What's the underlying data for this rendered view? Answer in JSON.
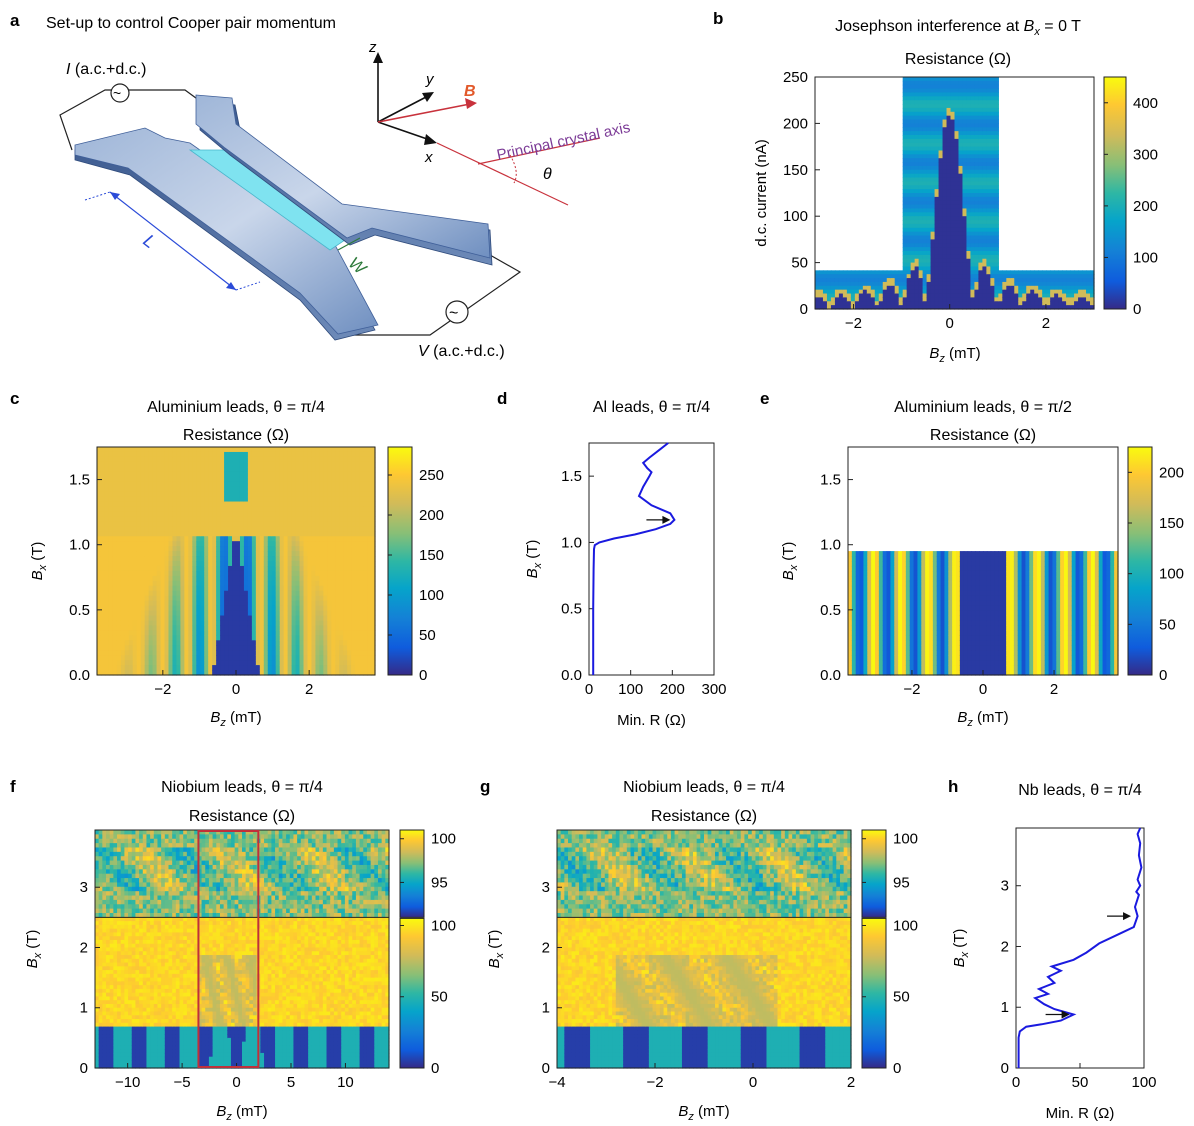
{
  "panel_labels": [
    "a",
    "b",
    "c",
    "d",
    "e",
    "f",
    "g",
    "h"
  ],
  "setup": {
    "title": "Set-up to control Cooper pair momentum",
    "current_source": "I (a.c.+d.c.)",
    "voltage_meter": "V (a.c.+d.c.)",
    "axis_x": "x",
    "axis_y": "y",
    "axis_z": "z",
    "field": "B",
    "crystal_axis": "Principal crystal axis",
    "angle": "θ",
    "length": "L",
    "width": "W"
  },
  "colors": {
    "parula": [
      "#352a87",
      "#0f5cdd",
      "#1481d6",
      "#06a4ca",
      "#2eb7a4",
      "#87bf77",
      "#d1bb59",
      "#fec832",
      "#f9fb0e"
    ],
    "trace": "#1a1adf",
    "field_arrow": "#c8323c",
    "axis_label": "#7b3a96",
    "highlight_box": "#c0303a"
  },
  "chart_data": [
    {
      "id": "b",
      "type": "heatmap",
      "title": "Josephson interference at B_x = 0 T",
      "title_parts": {
        "pre": "Josephson interference at ",
        "sym": "B",
        "sub": "x",
        "post": " = 0 T"
      },
      "subtitle": "Resistance (Ω)",
      "xlabel": {
        "sym": "B",
        "sub": "z",
        "unit": " (mT)"
      },
      "ylabel": "d.c. current (nA)",
      "xlim": [
        -2.8,
        3.0
      ],
      "ylim": [
        0,
        250
      ],
      "xticks": [
        -2,
        0,
        2
      ],
      "yticks": [
        0,
        50,
        100,
        150,
        200,
        250
      ],
      "colorbar": {
        "ticks": [
          0,
          100,
          200,
          300,
          400
        ],
        "range": [
          0,
          450
        ]
      },
      "central_lobe_peak_nA": 210
    },
    {
      "id": "c",
      "type": "heatmap",
      "title": "Aluminium leads, θ = π/4",
      "subtitle": "Resistance (Ω)",
      "xlabel": {
        "sym": "B",
        "sub": "z",
        "unit": " (mT)"
      },
      "ylabel": {
        "sym": "B",
        "sub": "x",
        "unit": " (T)"
      },
      "xlim": [
        -3.8,
        3.8
      ],
      "ylim": [
        0,
        1.75
      ],
      "xticks": [
        -2,
        0,
        2
      ],
      "yticks": [
        0.0,
        0.5,
        1.0,
        1.5
      ],
      "ytick_labels": [
        "0.0",
        "0.5",
        "1.0",
        "1.5"
      ],
      "colorbar": {
        "ticks": [
          0,
          50,
          100,
          150,
          200,
          250
        ],
        "range": [
          0,
          285
        ]
      }
    },
    {
      "id": "d",
      "type": "line",
      "title": "Al leads, θ = π/4",
      "xlabel": "Min. R (Ω)",
      "ylabel": {
        "sym": "B",
        "sub": "x",
        "unit": " (T)"
      },
      "xlim": [
        0,
        300
      ],
      "ylim": [
        0,
        1.75
      ],
      "xticks": [
        0,
        100,
        200,
        300
      ],
      "yticks": [
        0.0,
        0.5,
        1.0,
        1.5
      ],
      "ytick_labels": [
        "0.0",
        "0.5",
        "1.0",
        "1.5"
      ],
      "series": [
        {
          "x": [
            10,
            10,
            11,
            12,
            14,
            25,
            60,
            110,
            160,
            195,
            205,
            195,
            150,
            120,
            130,
            145,
            150,
            140,
            130,
            145,
            170,
            190
          ],
          "y": [
            0,
            0.5,
            0.8,
            0.95,
            0.98,
            1.0,
            1.03,
            1.06,
            1.1,
            1.14,
            1.17,
            1.22,
            1.28,
            1.35,
            1.42,
            1.5,
            1.53,
            1.56,
            1.6,
            1.64,
            1.7,
            1.75
          ]
        }
      ],
      "arrow_at": {
        "x": 205,
        "y": 1.17
      }
    },
    {
      "id": "e",
      "type": "heatmap",
      "title": "Aluminium leads, θ = π/2",
      "subtitle": "Resistance (Ω)",
      "xlabel": {
        "sym": "B",
        "sub": "z",
        "unit": " (mT)"
      },
      "ylabel": {
        "sym": "B",
        "sub": "x",
        "unit": " (T)"
      },
      "xlim": [
        -3.8,
        3.8
      ],
      "ylim": [
        0,
        1.75
      ],
      "xticks": [
        -2,
        0,
        2
      ],
      "yticks": [
        0.0,
        0.5,
        1.0,
        1.5
      ],
      "ytick_labels": [
        "0.0",
        "0.5",
        "1.0",
        "1.5"
      ],
      "colorbar": {
        "ticks": [
          0,
          50,
          100,
          150,
          200
        ],
        "range": [
          0,
          225
        ]
      },
      "data_top_T": 0.95
    },
    {
      "id": "f",
      "type": "heatmap",
      "title": "Niobium leads, θ = π/4",
      "subtitle": "Resistance (Ω)",
      "xlabel": {
        "sym": "B",
        "sub": "z",
        "unit": " (mT)"
      },
      "ylabel": {
        "sym": "B",
        "sub": "x",
        "unit": " (T)"
      },
      "xlim": [
        -13,
        14
      ],
      "ylim": [
        0,
        3.95
      ],
      "split_T": 2.5,
      "xticks": [
        -10,
        -5,
        0,
        5,
        10
      ],
      "yticks": [
        0,
        1,
        2,
        3
      ],
      "colorbar_top": {
        "ticks": [
          95,
          100
        ],
        "range": [
          91,
          101
        ]
      },
      "colorbar_bottom": {
        "ticks": [
          0,
          50,
          100
        ],
        "range": [
          0,
          105
        ]
      },
      "zoom_box_mT": [
        -3.5,
        2
      ]
    },
    {
      "id": "g",
      "type": "heatmap",
      "title": "Niobium leads, θ = π/4",
      "subtitle": "Resistance (Ω)",
      "xlabel": {
        "sym": "B",
        "sub": "z",
        "unit": " (mT)"
      },
      "ylabel": {
        "sym": "B",
        "sub": "x",
        "unit": " (T)"
      },
      "xlim": [
        -4,
        2
      ],
      "ylim": [
        0,
        3.95
      ],
      "split_T": 2.5,
      "xticks": [
        -4,
        -2,
        0,
        2
      ],
      "yticks": [
        0,
        1,
        2,
        3
      ],
      "colorbar_top": {
        "ticks": [
          95,
          100
        ],
        "range": [
          91,
          101
        ]
      },
      "colorbar_bottom": {
        "ticks": [
          0,
          50,
          100
        ],
        "range": [
          0,
          105
        ]
      }
    },
    {
      "id": "h",
      "type": "line",
      "title": "Nb leads, θ = π/4",
      "xlabel": "Min. R (Ω)",
      "ylabel": {
        "sym": "B",
        "sub": "x",
        "unit": " (T)"
      },
      "xlim": [
        0,
        100
      ],
      "ylim": [
        0,
        3.95
      ],
      "xticks": [
        0,
        50,
        100
      ],
      "yticks": [
        0,
        1,
        2,
        3
      ],
      "series": [
        {
          "x": [
            2,
            2,
            3,
            8,
            20,
            35,
            45,
            30,
            22,
            15,
            25,
            18,
            30,
            25,
            35,
            28,
            45,
            55,
            65,
            80,
            92,
            95,
            93,
            96,
            94,
            97,
            95,
            98,
            96,
            97,
            95,
            97
          ],
          "y": [
            0,
            0.5,
            0.6,
            0.68,
            0.72,
            0.78,
            0.88,
            0.97,
            1.05,
            1.15,
            1.22,
            1.3,
            1.4,
            1.5,
            1.6,
            1.67,
            1.78,
            1.9,
            2.05,
            2.2,
            2.32,
            2.5,
            2.65,
            2.85,
            2.9,
            3.0,
            3.1,
            3.3,
            3.5,
            3.7,
            3.85,
            3.95
          ]
        }
      ],
      "arrows_at": [
        {
          "x": 95,
          "y": 2.5
        },
        {
          "x": 45,
          "y": 0.88
        }
      ]
    }
  ]
}
